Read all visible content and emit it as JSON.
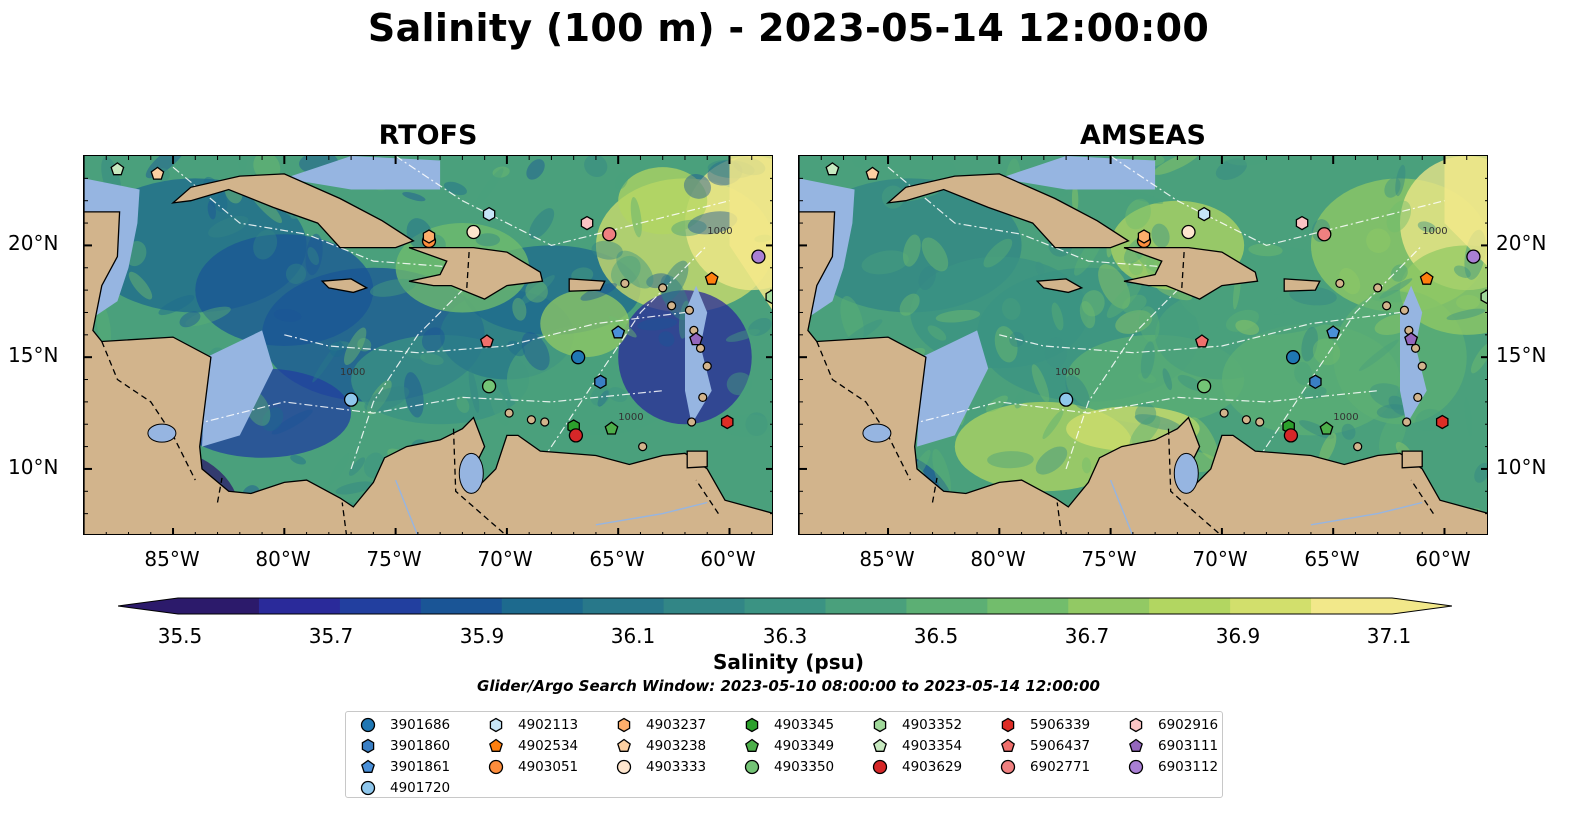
{
  "title": "Salinity (100 m) - 2023-05-14 12:00:00",
  "panels": [
    {
      "title": "RTOFS",
      "model": "rtofs"
    },
    {
      "title": "AMSEAS",
      "model": "amseas"
    }
  ],
  "map_extent": {
    "lon": [
      -89,
      -58
    ],
    "lat": [
      7,
      24
    ]
  },
  "x_ticks": [
    "85°W",
    "80°W",
    "75°W",
    "70°W",
    "65°W",
    "60°W"
  ],
  "y_ticks": [
    "20°N",
    "15°N",
    "10°N"
  ],
  "contour_label": "1000",
  "colors": {
    "land": "#d2b48c",
    "shallow_water": "#96b5e1",
    "colormap": [
      "#2c1a6b",
      "#2a2a9a",
      "#223f9f",
      "#1a5596",
      "#1d6a8e",
      "#28788a",
      "#328686",
      "#3b9383",
      "#4aa07c",
      "#5caf74",
      "#72bd6c",
      "#92c964",
      "#b2d661",
      "#d2df6c",
      "#f2e88a"
    ]
  },
  "colorbar": {
    "ticks": [
      "35.5",
      "35.7",
      "35.9",
      "36.1",
      "36.3",
      "36.5",
      "36.7",
      "36.9",
      "37.1"
    ],
    "label": "Salinity (psu)",
    "range": [
      35.4,
      37.2
    ]
  },
  "search_window_text": "Glider/Argo Search Window: 2023-05-10 08:00:00 to 2023-05-14 12:00:00",
  "platforms": [
    {
      "id": "3901686",
      "marker": "circle",
      "color": "#1f77b4",
      "lon": -66.8,
      "lat": 15.0
    },
    {
      "id": "3901860",
      "marker": "hexagon",
      "color": "#3a7fc4",
      "lon": -65.8,
      "lat": 13.9
    },
    {
      "id": "3901861",
      "marker": "pentagon",
      "color": "#4a90d9",
      "lon": -65.0,
      "lat": 16.1
    },
    {
      "id": "4901720",
      "marker": "circle",
      "color": "#8fc7ec",
      "lon": -77.0,
      "lat": 13.1
    },
    {
      "id": "4902113",
      "marker": "hexagon",
      "color": "#c6e5f7",
      "lon": -70.8,
      "lat": 21.4
    },
    {
      "id": "4902534",
      "marker": "pentagon",
      "color": "#ff7f0e",
      "lon": -60.8,
      "lat": 18.5
    },
    {
      "id": "4903051",
      "marker": "circle",
      "color": "#fd8d3c",
      "lon": -73.5,
      "lat": 20.2
    },
    {
      "id": "4903237",
      "marker": "hexagon",
      "color": "#fdae6b",
      "lon": -73.5,
      "lat": 20.4
    },
    {
      "id": "4903238",
      "marker": "pentagon",
      "color": "#fdd0a2",
      "lon": -85.7,
      "lat": 23.2
    },
    {
      "id": "4903333",
      "marker": "circle",
      "color": "#fee6ce",
      "lon": -71.5,
      "lat": 20.6
    },
    {
      "id": "4903345",
      "marker": "hexagon",
      "color": "#2ca02c",
      "lon": -67.0,
      "lat": 11.9
    },
    {
      "id": "4903349",
      "marker": "pentagon",
      "color": "#4daf4a",
      "lon": -65.3,
      "lat": 11.8
    },
    {
      "id": "4903350",
      "marker": "circle",
      "color": "#74c476",
      "lon": -70.8,
      "lat": 13.7
    },
    {
      "id": "4903352",
      "marker": "hexagon",
      "color": "#a1d99b",
      "lon": -58.1,
      "lat": 17.7
    },
    {
      "id": "4903354",
      "marker": "pentagon",
      "color": "#c7e9c0",
      "lon": -87.5,
      "lat": 23.4
    },
    {
      "id": "4903629",
      "marker": "circle",
      "color": "#d62728",
      "lon": -66.9,
      "lat": 11.5
    },
    {
      "id": "5906339",
      "marker": "hexagon",
      "color": "#de2d26",
      "lon": -60.1,
      "lat": 12.1
    },
    {
      "id": "5906437",
      "marker": "pentagon",
      "color": "#ef6f6c",
      "lon": -70.9,
      "lat": 15.7
    },
    {
      "id": "6902771",
      "marker": "circle",
      "color": "#f08080",
      "lon": -65.4,
      "lat": 20.5
    },
    {
      "id": "6902916",
      "marker": "hexagon",
      "color": "#fbc4c4",
      "lon": -66.4,
      "lat": 21.0
    },
    {
      "id": "6903111",
      "marker": "pentagon",
      "color": "#9467bd",
      "lon": -61.5,
      "lat": 15.8
    },
    {
      "id": "6903112",
      "marker": "circle",
      "color": "#a97fd4",
      "lon": -58.7,
      "lat": 19.5
    }
  ]
}
